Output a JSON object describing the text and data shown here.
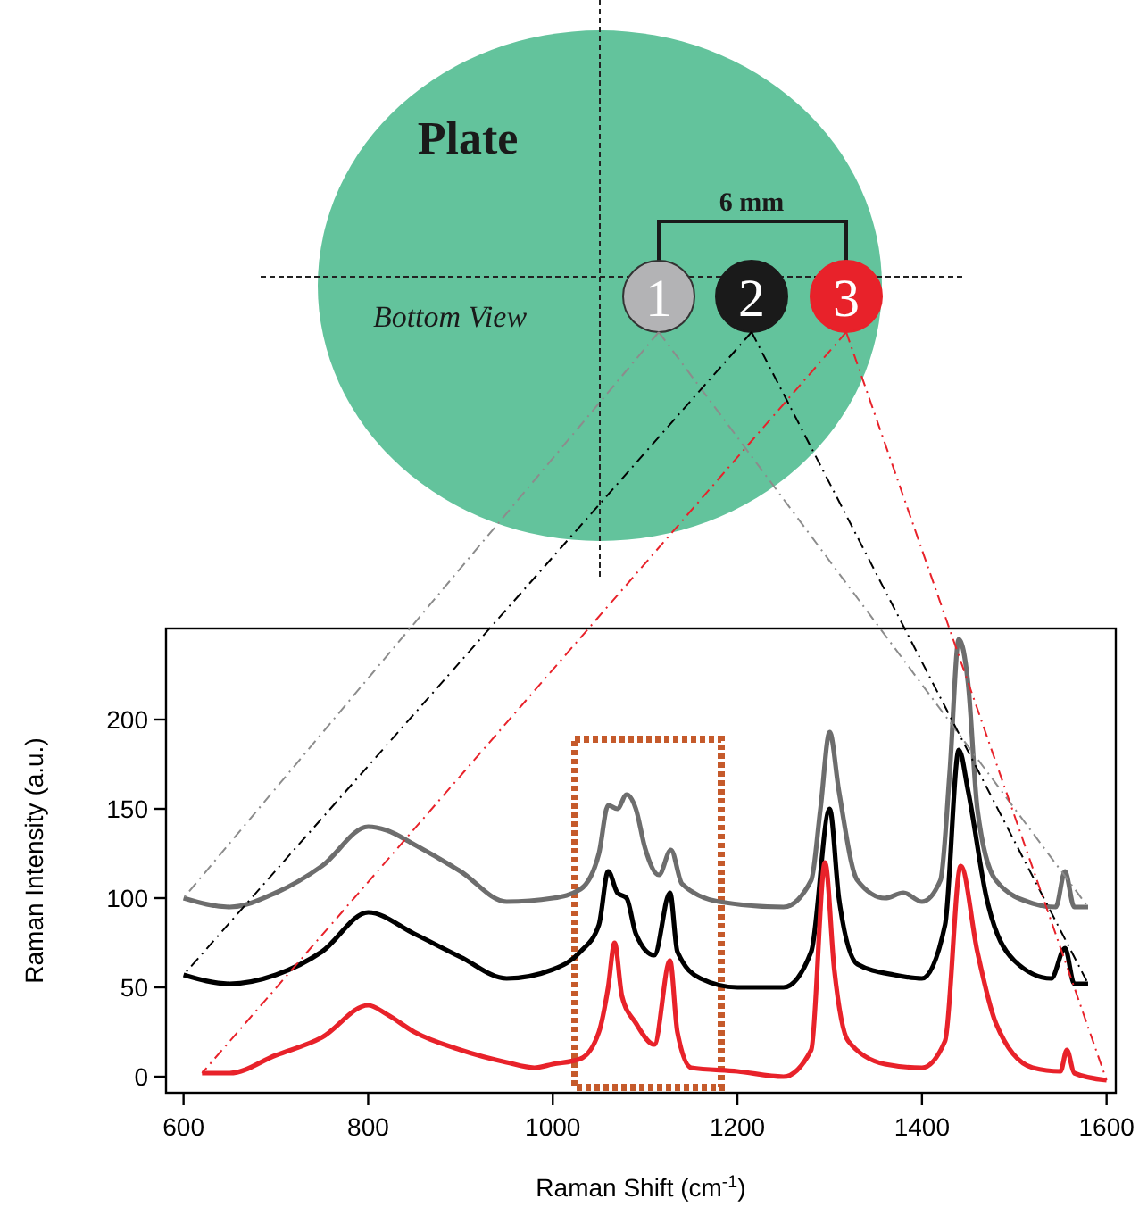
{
  "chart_data": {
    "type": "line",
    "xlabel": "Raman Shift (cm$^{-1}$)",
    "ylabel": "Raman Intensity (a.u.)",
    "xlim": [
      581,
      1610
    ],
    "ylim": [
      -9,
      251
    ],
    "xticks": [
      600,
      800,
      1000,
      1200,
      1400,
      1600
    ],
    "yticks": [
      0,
      50,
      100,
      150,
      200
    ],
    "grid": false,
    "marker": "none",
    "line_style": "solid",
    "annotations": [
      "Plate",
      "6 mm",
      "Bottom View",
      "1",
      "2",
      "3"
    ],
    "series": [
      {
        "color": "#6d6d6d",
        "x": [
          600,
          650,
          700,
          750,
          800,
          820,
          850,
          900,
          950,
          1000,
          1030,
          1050,
          1060,
          1070,
          1080,
          1090,
          1100,
          1115,
          1128,
          1140,
          1180,
          1250,
          1280,
          1290,
          1300,
          1310,
          1330,
          1360,
          1380,
          1400,
          1420,
          1430,
          1440,
          1450,
          1460,
          1480,
          1520,
          1545,
          1555,
          1565,
          1580
        ],
        "values": [
          100,
          95,
          103,
          118,
          140,
          138,
          130,
          115,
          98,
          100,
          105,
          125,
          152,
          150,
          158,
          150,
          128,
          113,
          127,
          108,
          98,
          95,
          110,
          150,
          193,
          160,
          110,
          100,
          103,
          98,
          110,
          170,
          245,
          220,
          150,
          110,
          97,
          95,
          115,
          95,
          95
        ]
      },
      {
        "color": "#000000",
        "x": [
          600,
          650,
          700,
          750,
          800,
          850,
          900,
          950,
          1000,
          1030,
          1050,
          1060,
          1070,
          1080,
          1090,
          1110,
          1127,
          1135,
          1160,
          1200,
          1250,
          1280,
          1300,
          1310,
          1330,
          1370,
          1400,
          1425,
          1440,
          1450,
          1470,
          1500,
          1540,
          1555,
          1565,
          1580
        ],
        "values": [
          57,
          52,
          57,
          70,
          92,
          80,
          67,
          55,
          60,
          70,
          85,
          115,
          103,
          100,
          80,
          68,
          103,
          70,
          55,
          50,
          50,
          70,
          150,
          100,
          63,
          57,
          55,
          85,
          183,
          160,
          100,
          65,
          55,
          72,
          52,
          52
        ]
      },
      {
        "color": "#e8222a",
        "x": [
          620,
          650,
          700,
          750,
          800,
          820,
          850,
          900,
          950,
          980,
          1000,
          1030,
          1050,
          1060,
          1067,
          1075,
          1090,
          1110,
          1127,
          1135,
          1150,
          1200,
          1250,
          1280,
          1295,
          1305,
          1320,
          1360,
          1400,
          1425,
          1442,
          1460,
          1480,
          1520,
          1550,
          1557,
          1565,
          1600
        ],
        "values": [
          2,
          2,
          12,
          22,
          40,
          35,
          25,
          15,
          8,
          5,
          7,
          10,
          25,
          50,
          75,
          45,
          30,
          18,
          65,
          25,
          5,
          3,
          0,
          15,
          120,
          60,
          20,
          7,
          5,
          20,
          118,
          70,
          30,
          5,
          3,
          15,
          2,
          -2
        ]
      }
    ]
  }
}
